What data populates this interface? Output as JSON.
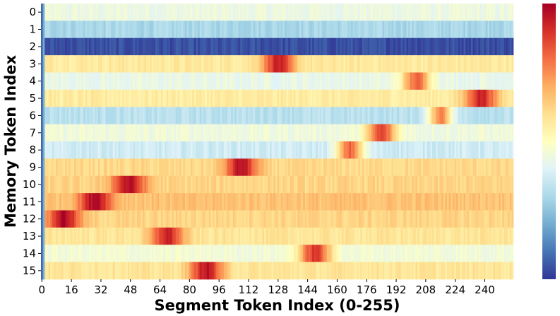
{
  "chart_data": {
    "type": "heatmap",
    "title": "",
    "xlabel": "Segment Token Index (0-255)",
    "ylabel": "Memory Token Index",
    "x_range": [
      0,
      255
    ],
    "x_ticks": [
      "0",
      "16",
      "32",
      "48",
      "64",
      "80",
      "96",
      "112",
      "128",
      "144",
      "160",
      "176",
      "192",
      "208",
      "224",
      "240"
    ],
    "x_tick_values": [
      0,
      16,
      32,
      48,
      64,
      80,
      96,
      112,
      128,
      144,
      160,
      176,
      192,
      208,
      224,
      240
    ],
    "y_ticks": [
      "0",
      "1",
      "2",
      "3",
      "4",
      "5",
      "6",
      "7",
      "8",
      "9",
      "10",
      "11",
      "12",
      "13",
      "14",
      "15"
    ],
    "colormap": "RdYlBu_r",
    "colormap_colors": [
      "#313695",
      "#4575b4",
      "#74add1",
      "#abd9e9",
      "#e0f3f8",
      "#ffffbf",
      "#fee090",
      "#fdae61",
      "#f46d43",
      "#d73027",
      "#a50026"
    ],
    "colorbar": true,
    "value_range": [
      0,
      1
    ],
    "rows": [
      {
        "row": 0,
        "base": 0.44,
        "peak_center": null,
        "peak_width": 0,
        "peak_value": 0
      },
      {
        "row": 1,
        "base": 0.3,
        "peak_center": null,
        "peak_width": 0,
        "peak_value": 0
      },
      {
        "row": 2,
        "base": 0.04,
        "peak_center": null,
        "peak_width": 0,
        "peak_value": 0
      },
      {
        "row": 3,
        "base": 0.57,
        "peak_center": 128,
        "peak_width": 12,
        "peak_value": 0.93
      },
      {
        "row": 4,
        "base": 0.43,
        "peak_center": 203,
        "peak_width": 11,
        "peak_value": 0.81
      },
      {
        "row": 5,
        "base": 0.56,
        "peak_center": 238,
        "peak_width": 12,
        "peak_value": 0.93
      },
      {
        "row": 6,
        "base": 0.33,
        "peak_center": 216,
        "peak_width": 9,
        "peak_value": 0.77
      },
      {
        "row": 7,
        "base": 0.45,
        "peak_center": 184,
        "peak_width": 11,
        "peak_value": 0.86
      },
      {
        "row": 8,
        "base": 0.37,
        "peak_center": 167,
        "peak_width": 10,
        "peak_value": 0.81
      },
      {
        "row": 9,
        "base": 0.61,
        "peak_center": 108,
        "peak_width": 12,
        "peak_value": 0.96
      },
      {
        "row": 10,
        "base": 0.62,
        "peak_center": 47,
        "peak_width": 13,
        "peak_value": 0.96
      },
      {
        "row": 11,
        "base": 0.66,
        "peak_center": 29,
        "peak_width": 12,
        "peak_value": 0.99
      },
      {
        "row": 12,
        "base": 0.62,
        "peak_center": 12,
        "peak_width": 12,
        "peak_value": 0.98
      },
      {
        "row": 13,
        "base": 0.58,
        "peak_center": 68,
        "peak_width": 12,
        "peak_value": 0.93
      },
      {
        "row": 14,
        "base": 0.46,
        "peak_center": 148,
        "peak_width": 12,
        "peak_value": 0.89
      },
      {
        "row": 15,
        "base": 0.58,
        "peak_center": 89,
        "peak_width": 12,
        "peak_value": 0.96
      }
    ]
  }
}
